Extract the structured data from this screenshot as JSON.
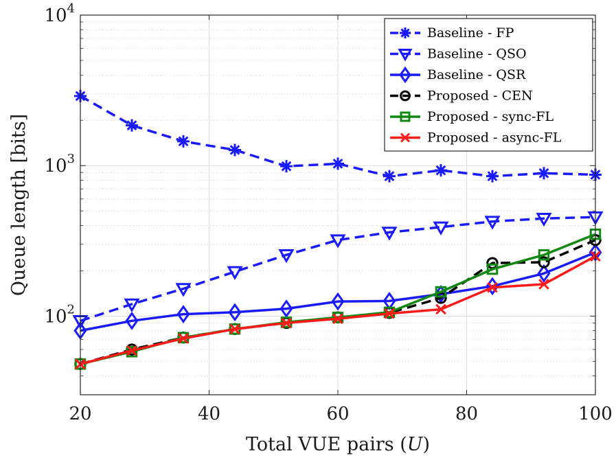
{
  "chart_data": {
    "type": "line",
    "xlabel": "Total VUE pairs (U)",
    "ylabel": "Queue length [bits]",
    "xlim": [
      20,
      100
    ],
    "ylim": [
      30,
      10000
    ],
    "yscale": "log",
    "grid": true,
    "legend_position": "top-right",
    "x_ticks": [
      "20",
      "40",
      "60",
      "80",
      "100"
    ],
    "x": [
      20,
      28,
      36,
      44,
      52,
      60,
      68,
      76,
      84,
      92,
      100
    ],
    "series": [
      {
        "name": "Baseline - FP",
        "color": "#1a1aff",
        "dash": "dashed",
        "marker": "asterisk",
        "values": [
          2900,
          1850,
          1450,
          1270,
          990,
          1030,
          850,
          930,
          850,
          890,
          870
        ]
      },
      {
        "name": "Baseline - QSO",
        "color": "#1a1aff",
        "dash": "dashed",
        "marker": "triangle-down",
        "values": [
          93,
          120,
          152,
          197,
          255,
          320,
          360,
          390,
          425,
          445,
          455
        ]
      },
      {
        "name": "Baseline - QSR",
        "color": "#1a1aff",
        "dash": "solid",
        "marker": "diamond",
        "values": [
          80,
          93,
          103,
          106,
          112,
          125,
          126,
          140,
          158,
          192,
          265
        ]
      },
      {
        "name": "Proposed - CEN",
        "color": "#000000",
        "dash": "dashed",
        "marker": "circle",
        "values": [
          48,
          60,
          72,
          82,
          90,
          98,
          105,
          132,
          225,
          228,
          320
        ]
      },
      {
        "name": "Proposed - sync-FL",
        "color": "#118811",
        "dash": "solid",
        "marker": "square",
        "values": [
          48,
          58,
          72,
          82,
          91,
          98,
          106,
          145,
          205,
          255,
          350
        ]
      },
      {
        "name": "Proposed - async-FL",
        "color": "#ff1a1a",
        "dash": "solid",
        "marker": "x",
        "values": [
          48,
          59,
          71,
          82,
          90,
          96,
          104,
          111,
          155,
          163,
          250
        ]
      }
    ]
  }
}
